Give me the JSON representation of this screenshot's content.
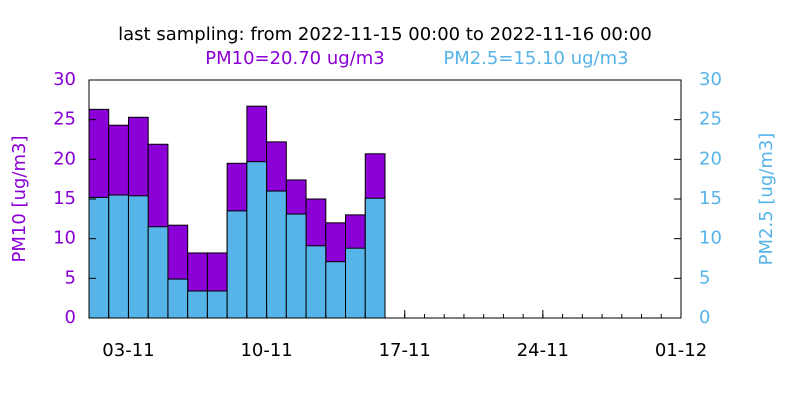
{
  "chart_data": {
    "type": "bar",
    "title": "last sampling: from 2022-11-15 00:00 to 2022-11-16 00:00",
    "subtitles": [
      {
        "text": "PM10=20.70 ug/m3",
        "color": "#8b00d6"
      },
      {
        "text": "PM2.5=15.10 ug/m3",
        "color": "#56b4e9"
      }
    ],
    "ylabel": "PM10 [ug/m3]",
    "y2label": "PM2.5 [ug/m3]",
    "x": [
      "01-11",
      "02-11",
      "03-11",
      "04-11",
      "05-11",
      "06-11",
      "07-11",
      "08-11",
      "09-11",
      "10-11",
      "11-11",
      "12-11",
      "13-11",
      "14-11",
      "15-11"
    ],
    "xlim": [
      "01-11",
      "01-12"
    ],
    "xticks": [
      "03-11",
      "10-11",
      "17-11",
      "24-11",
      "01-12"
    ],
    "series": [
      {
        "name": "PM10",
        "color": "#8b00d6",
        "values": [
          26.3,
          24.3,
          25.3,
          21.9,
          11.7,
          8.2,
          8.2,
          19.5,
          26.7,
          22.2,
          17.4,
          15.0,
          12.0,
          13.0,
          20.7
        ]
      },
      {
        "name": "PM2.5",
        "color": "#56b4e9",
        "axis": "y2",
        "values": [
          15.2,
          15.5,
          15.4,
          11.5,
          4.9,
          3.4,
          3.4,
          13.5,
          19.7,
          16.0,
          13.1,
          9.1,
          7.1,
          8.8,
          15.1
        ]
      }
    ],
    "ylim": [
      0,
      30
    ],
    "yticks": [
      0,
      5,
      10,
      15,
      20,
      25,
      30
    ],
    "y2lim": [
      0,
      30
    ],
    "y2ticks": [
      0,
      5,
      10,
      15,
      20,
      25,
      30
    ]
  }
}
